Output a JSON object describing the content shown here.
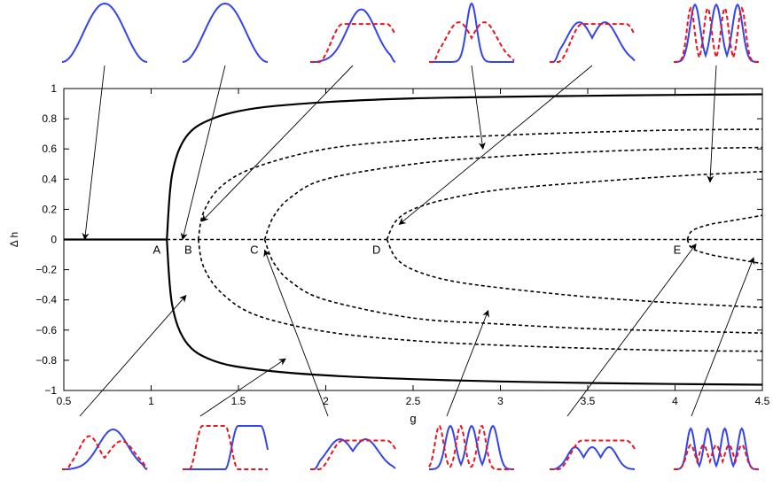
{
  "chart_data": {
    "type": "line",
    "xlabel": "g",
    "ylabel": "Δ h",
    "xlim": [
      0.5,
      4.5
    ],
    "ylim": [
      -1,
      1
    ],
    "xticks": [
      "0.5",
      "1",
      "1.5",
      "2",
      "2.5",
      "3",
      "3.5",
      "4",
      "4.5"
    ],
    "yticks": [
      "1",
      "0.8",
      "0.6",
      "0.4",
      "0.2",
      "0",
      "−0.2",
      "−0.4",
      "−0.6",
      "−0.8",
      "−1"
    ],
    "grid": false,
    "legend": "none",
    "colors": {
      "axis": "#000000",
      "profile_blue": "#3344ee",
      "profile_red": "#e8141e"
    },
    "bifurcation_points": [
      {
        "label": "A",
        "g": 1.09
      },
      {
        "label": "B",
        "g": 1.27
      },
      {
        "label": "C",
        "g": 1.65
      },
      {
        "label": "D",
        "g": 2.35
      },
      {
        "label": "E",
        "g": 4.07
      }
    ],
    "series": [
      {
        "style": "solid",
        "x": [
          0.5,
          1.09
        ],
        "y": [
          0,
          0
        ]
      },
      {
        "style": "dashed",
        "x": [
          1.09,
          4.5
        ],
        "y": [
          0,
          0
        ]
      },
      {
        "style": "solid",
        "branch_of": "A",
        "x": [
          1.09,
          1.12,
          1.2,
          1.35,
          1.6,
          2.0,
          2.5,
          3.0,
          3.5,
          4.0,
          4.5
        ],
        "y": [
          0,
          0.43,
          0.68,
          0.8,
          0.87,
          0.91,
          0.935,
          0.945,
          0.952,
          0.958,
          0.962
        ]
      },
      {
        "style": "solid",
        "branch_of": "A",
        "x": [
          1.09,
          1.12,
          1.2,
          1.35,
          1.6,
          2.0,
          2.5,
          3.0,
          3.5,
          4.0,
          4.5
        ],
        "y": [
          0,
          -0.43,
          -0.68,
          -0.8,
          -0.86,
          -0.9,
          -0.925,
          -0.94,
          -0.95,
          -0.957,
          -0.962
        ]
      },
      {
        "style": "dashed",
        "branch_of": "B",
        "x": [
          1.27,
          1.3,
          1.4,
          1.6,
          2.0,
          2.5,
          3.0,
          3.5,
          4.0,
          4.5
        ],
        "y": [
          0,
          0.18,
          0.35,
          0.48,
          0.6,
          0.66,
          0.69,
          0.71,
          0.725,
          0.73
        ]
      },
      {
        "style": "dashed",
        "branch_of": "B",
        "x": [
          1.27,
          1.3,
          1.4,
          1.6,
          2.0,
          2.5,
          3.0,
          3.5,
          4.0,
          4.5
        ],
        "y": [
          0,
          -0.18,
          -0.35,
          -0.5,
          -0.61,
          -0.67,
          -0.7,
          -0.72,
          -0.735,
          -0.74
        ]
      },
      {
        "style": "dashed",
        "branch_of": "C",
        "x": [
          1.65,
          1.7,
          1.8,
          2.0,
          2.5,
          3.0,
          3.5,
          4.0,
          4.5
        ],
        "y": [
          0,
          0.15,
          0.28,
          0.4,
          0.5,
          0.55,
          0.58,
          0.6,
          0.61
        ]
      },
      {
        "style": "dashed",
        "branch_of": "C",
        "x": [
          1.65,
          1.7,
          1.8,
          2.0,
          2.5,
          3.0,
          3.5,
          4.0,
          4.5
        ],
        "y": [
          0,
          -0.15,
          -0.28,
          -0.4,
          -0.52,
          -0.56,
          -0.59,
          -0.605,
          -0.62
        ]
      },
      {
        "style": "dashed",
        "branch_of": "D",
        "x": [
          2.35,
          2.4,
          2.5,
          2.7,
          3.0,
          3.5,
          4.0,
          4.5
        ],
        "y": [
          0,
          0.12,
          0.2,
          0.27,
          0.33,
          0.38,
          0.42,
          0.45
        ]
      },
      {
        "style": "dashed",
        "branch_of": "D",
        "x": [
          2.35,
          2.4,
          2.5,
          2.7,
          3.0,
          3.5,
          4.0,
          4.5
        ],
        "y": [
          0,
          -0.12,
          -0.2,
          -0.27,
          -0.32,
          -0.38,
          -0.42,
          -0.45
        ]
      },
      {
        "style": "dashed",
        "branch_of": "E",
        "x": [
          4.07,
          4.1,
          4.2,
          4.3,
          4.4,
          4.5
        ],
        "y": [
          0,
          0.06,
          0.1,
          0.12,
          0.14,
          0.16
        ]
      },
      {
        "style": "dashed",
        "branch_of": "E",
        "x": [
          4.07,
          4.1,
          4.2,
          4.3,
          4.4,
          4.5
        ],
        "y": [
          0,
          -0.06,
          -0.1,
          -0.12,
          -0.14,
          -0.16
        ]
      }
    ],
    "profile_insets": {
      "top": [
        {
          "curves": [
            {
              "color": "blue",
              "shape": "single"
            }
          ],
          "points_to": [
            0.62,
            0.0
          ]
        },
        {
          "curves": [
            {
              "color": "blue",
              "shape": "single"
            }
          ],
          "points_to": [
            1.18,
            0.0
          ]
        },
        {
          "curves": [
            {
              "color": "blue",
              "shape": "skewed"
            },
            {
              "color": "red",
              "shape": "flat"
            }
          ],
          "points_to": [
            1.29,
            0.12
          ]
        },
        {
          "curves": [
            {
              "color": "blue",
              "shape": "narrow"
            },
            {
              "color": "red",
              "shape": "two"
            }
          ],
          "points_to": [
            2.9,
            0.6
          ]
        },
        {
          "curves": [
            {
              "color": "blue",
              "shape": "two"
            },
            {
              "color": "red",
              "shape": "flat"
            }
          ],
          "points_to": [
            2.42,
            0.1
          ]
        },
        {
          "curves": [
            {
              "color": "blue",
              "shape": "three"
            },
            {
              "color": "red",
              "shape": "four"
            }
          ],
          "points_to": [
            4.2,
            0.38
          ]
        }
      ],
      "bottom": [
        {
          "curves": [
            {
              "color": "blue",
              "shape": "skewed"
            },
            {
              "color": "red",
              "shape": "skewed-left"
            }
          ],
          "points_to": [
            1.2,
            -0.37
          ]
        },
        {
          "curves": [
            {
              "color": "blue",
              "shape": "right-lobe"
            },
            {
              "color": "red",
              "shape": "left-lobe"
            }
          ],
          "points_to": [
            1.77,
            -0.79
          ]
        },
        {
          "curves": [
            {
              "color": "blue",
              "shape": "two"
            },
            {
              "color": "red",
              "shape": "flat"
            }
          ],
          "points_to": [
            1.65,
            -0.07
          ]
        },
        {
          "curves": [
            {
              "color": "blue",
              "shape": "three"
            },
            {
              "color": "red",
              "shape": "three-shifted"
            }
          ],
          "points_to": [
            2.93,
            -0.47
          ]
        },
        {
          "curves": [
            {
              "color": "blue",
              "shape": "three-low"
            },
            {
              "color": "red",
              "shape": "flat"
            }
          ],
          "points_to": [
            4.12,
            -0.03
          ]
        },
        {
          "curves": [
            {
              "color": "blue",
              "shape": "four"
            },
            {
              "color": "red",
              "shape": "five"
            }
          ],
          "points_to": [
            4.45,
            -0.12
          ]
        }
      ]
    }
  }
}
